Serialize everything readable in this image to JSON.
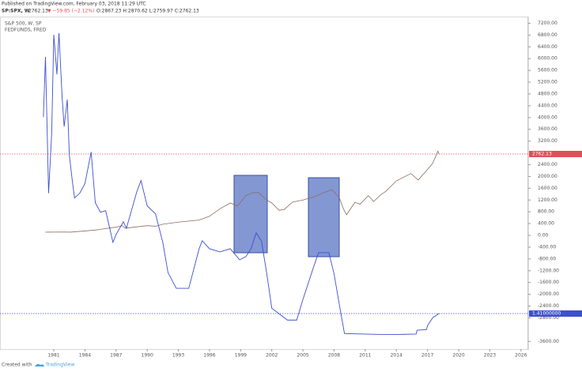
{
  "header": {
    "published": "Published on TradingView.com, February 03, 2018 11:29 UTC",
    "symbol": "SP:SPX, W",
    "last": "2762.13",
    "change": "▼ −59.85 (−2.12%)",
    "ohlc": "O:2867.23 H:2870.62 L:2759.97 C:2762.13"
  },
  "footer": {
    "created": "Created with",
    "brand": "TradingView"
  },
  "chart_data": {
    "type": "line",
    "xlim": [
      1975.82,
      2026.7
    ],
    "xticks": [
      1981,
      1984,
      1987,
      1990,
      1993,
      1996,
      1999,
      2002,
      2005,
      2008,
      2011,
      2014,
      2017,
      2020,
      2023,
      2026
    ],
    "ylim": [
      -3860,
      7400
    ],
    "yticks": [
      {
        "value": 7200,
        "label": "7200.00"
      },
      {
        "value": 6800,
        "label": "6800.00"
      },
      {
        "value": 6400,
        "label": "6400.00"
      },
      {
        "value": 6000,
        "label": "6000.00"
      },
      {
        "value": 5600,
        "label": "5600.00"
      },
      {
        "value": 5200,
        "label": "5200.00"
      },
      {
        "value": 4800,
        "label": "4800.00"
      },
      {
        "value": 4400,
        "label": "4400.00"
      },
      {
        "value": 4000,
        "label": "4000.00"
      },
      {
        "value": 3600,
        "label": "3600.00"
      },
      {
        "value": 3200,
        "label": "3200.00"
      },
      {
        "value": 2400,
        "label": "2400.00"
      },
      {
        "value": 2000,
        "label": "2000.00"
      },
      {
        "value": 1600,
        "label": "1600.00"
      },
      {
        "value": 1200,
        "label": "1200.00"
      },
      {
        "value": 800,
        "label": "800.00"
      },
      {
        "value": 400,
        "label": "400.00"
      },
      {
        "value": 0,
        "label": "0.00"
      },
      {
        "value": -400,
        "label": "-400.00"
      },
      {
        "value": -800,
        "label": "-800.00"
      },
      {
        "value": -1200,
        "label": "-1200.00"
      },
      {
        "value": -1600,
        "label": "-1600.00"
      },
      {
        "value": -2000,
        "label": "-2000.00"
      },
      {
        "value": -2400,
        "label": "-2400.00"
      },
      {
        "value": -2800,
        "label": "-2800.00"
      },
      {
        "value": -3600,
        "label": "-3600.00"
      }
    ],
    "y2lim": [
      -0.83,
      20.09
    ],
    "grid": false,
    "series": [
      {
        "name": "S&P 500, W, SP",
        "color": "#8c6e62",
        "last_color": "#e0505a",
        "last_label": "2762.13",
        "x": [
          1980.2,
          1982.0,
          1982.6,
          1985.0,
          1987.0,
          1987.6,
          1987.9,
          1988.5,
          1990.0,
          1990.8,
          1991.5,
          1993.0,
          1995.0,
          1996.0,
          1997.0,
          1998.0,
          1998.7,
          1999.5,
          2000.2,
          2000.7,
          2001.5,
          2002.0,
          2002.7,
          2003.2,
          2004.0,
          2005.0,
          2006.0,
          2007.0,
          2007.8,
          2008.5,
          2008.9,
          2009.2,
          2010.0,
          2010.5,
          2011.3,
          2011.8,
          2012.5,
          2013.0,
          2014.0,
          2015.4,
          2016.1,
          2016.9,
          2017.5,
          2018.0,
          2018.1
        ],
        "values": [
          110,
          115,
          110,
          180,
          280,
          330,
          240,
          270,
          330,
          310,
          380,
          450,
          520,
          650,
          900,
          1100,
          1000,
          1350,
          1450,
          1460,
          1200,
          1100,
          850,
          880,
          1130,
          1200,
          1300,
          1450,
          1550,
          1280,
          900,
          700,
          1120,
          1060,
          1350,
          1150,
          1380,
          1500,
          1850,
          2100,
          1880,
          2200,
          2450,
          2860,
          2762.13
        ]
      },
      {
        "name": "FEDFUNDS, FRED",
        "color": "#3d4fd0",
        "last_color": "#3d4fd0",
        "last_label": "1.41000000",
        "axis": "y2",
        "x": [
          1980.0,
          1980.2,
          1980.5,
          1980.8,
          1981.0,
          1981.3,
          1981.5,
          1981.8,
          1982.0,
          1982.3,
          1982.5,
          1982.8,
          1983.0,
          1983.5,
          1984.0,
          1984.6,
          1985.0,
          1985.5,
          1986.0,
          1986.7,
          1987.0,
          1987.7,
          1988.0,
          1989.0,
          1989.4,
          1990.0,
          1990.8,
          1991.5,
          1992.0,
          1992.8,
          1993.5,
          1994.0,
          1995.0,
          1995.3,
          1996.0,
          1997.0,
          1998.0,
          1998.9,
          1999.5,
          2000.0,
          2000.5,
          2001.0,
          2001.5,
          2002.0,
          2003.0,
          2003.5,
          2004.4,
          2005.0,
          2006.0,
          2006.5,
          2007.5,
          2008.0,
          2008.5,
          2009.0,
          2012.0,
          2014.0,
          2015.9,
          2016.0,
          2016.9,
          2017.0,
          2017.5,
          2018.1
        ],
        "values": [
          13.8,
          17.6,
          9.0,
          12.8,
          19.0,
          16.5,
          19.1,
          15.1,
          13.2,
          14.9,
          11.4,
          9.7,
          8.7,
          9.0,
          9.6,
          11.6,
          8.4,
          7.8,
          7.9,
          5.9,
          6.4,
          7.2,
          6.8,
          9.1,
          9.8,
          8.2,
          7.7,
          5.9,
          4.0,
          3.0,
          3.0,
          3.0,
          5.5,
          6.0,
          5.5,
          5.3,
          5.5,
          4.8,
          5.0,
          5.5,
          6.5,
          6.0,
          4.0,
          1.75,
          1.25,
          1.0,
          1.0,
          2.3,
          4.3,
          5.25,
          5.25,
          3.9,
          2.0,
          0.15,
          0.1,
          0.09,
          0.12,
          0.36,
          0.4,
          0.65,
          1.15,
          1.41
        ]
      }
    ]
  }
}
